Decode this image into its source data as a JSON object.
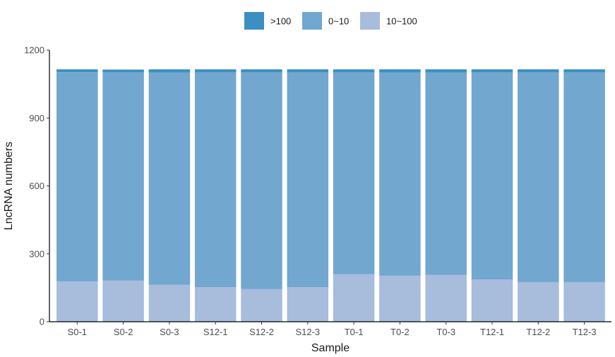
{
  "chart_data": {
    "type": "bar",
    "stacked": true,
    "categories": [
      "S0-1",
      "S0-2",
      "S0-3",
      "S12-1",
      "S12-2",
      "S12-3",
      "T0-1",
      "T0-2",
      "T0-3",
      "T12-1",
      "T12-2",
      "T12-3"
    ],
    "series": [
      {
        "name": "10~100",
        "color": "#a8bcdc",
        "values": [
          178,
          182,
          163,
          152,
          144,
          152,
          210,
          203,
          207,
          187,
          175,
          175
        ]
      },
      {
        "name": "0~10",
        "color": "#72a7cf",
        "values": [
          925,
          920,
          938,
          950,
          958,
          950,
          892,
          898,
          894,
          915,
          927,
          927
        ]
      },
      {
        "name": ">100",
        "color": "#3b8fc2",
        "values": [
          12,
          12,
          14,
          13,
          13,
          13,
          13,
          14,
          14,
          13,
          13,
          13
        ]
      }
    ],
    "legend_order": [
      ">100",
      "0~10",
      "10~100"
    ],
    "xlabel": "Sample",
    "ylabel": "LncRNA numbers",
    "ylim": [
      0,
      1200
    ],
    "yticks": [
      0,
      300,
      600,
      900,
      1200
    ],
    "grid": false,
    "legend_position": "top"
  }
}
